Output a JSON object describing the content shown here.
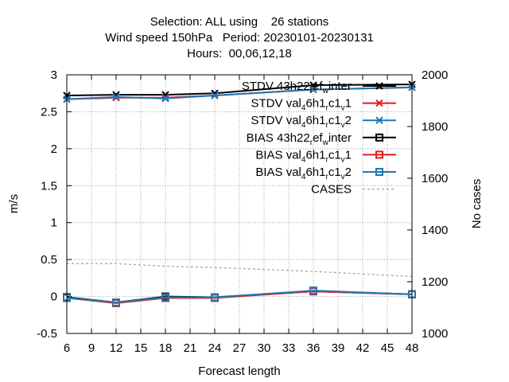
{
  "chart_data": {
    "type": "line",
    "title_lines": [
      "Selection: ALL using    26 stations",
      "Wind speed 150hPa   Period: 20230101-20230131",
      "Hours:  00,06,12,18"
    ],
    "xlabel": "Forecast length",
    "ylabel": "m/s",
    "y2label": "No cases",
    "x": [
      6,
      12,
      18,
      24,
      36,
      48
    ],
    "xlim": [
      6,
      48
    ],
    "xticks": [
      "6",
      "9",
      "12",
      "15",
      "18",
      "21",
      "24",
      "27",
      "30",
      "33",
      "36",
      "39",
      "42",
      "45",
      "48"
    ],
    "ylim": [
      -0.5,
      3
    ],
    "yticks": [
      "-0.5",
      "0",
      "0.5",
      "1",
      "1.5",
      "2",
      "2.5",
      "3"
    ],
    "y2lim": [
      1000,
      2000
    ],
    "y2ticks": [
      "1000",
      "1200",
      "1400",
      "1600",
      "1800",
      "2000"
    ],
    "grid": true,
    "legend_position": "top-right",
    "series": [
      {
        "name": "STDV 43h22_ref_winter",
        "label": {
          "main": "STDV 43h22",
          "subs": [
            [
              "r",
              "ef"
            ],
            [
              "w",
              "inter"
            ]
          ]
        },
        "color": "#000000",
        "marker": "x",
        "axis": "y1",
        "values": [
          2.72,
          2.73,
          2.73,
          2.75,
          2.86,
          2.87
        ]
      },
      {
        "name": "STDV val_46h1_rc1_v1",
        "label": {
          "main": "STDV val",
          "subs": [
            [
              "4",
              "6h1"
            ],
            [
              "r",
              "c1"
            ],
            [
              "v",
              "1"
            ]
          ]
        },
        "color": "#e41a1c",
        "marker": "x",
        "axis": "y1",
        "values": [
          2.67,
          2.69,
          2.69,
          2.72,
          2.8,
          2.83
        ]
      },
      {
        "name": "STDV val_46h1_rc1_v2",
        "label": {
          "main": "STDV val",
          "subs": [
            [
              "4",
              "6h1"
            ],
            [
              "r",
              "c1"
            ],
            [
              "v",
              "2"
            ]
          ]
        },
        "color": "#1f77b4",
        "marker": "x",
        "axis": "y1",
        "values": [
          2.67,
          2.7,
          2.68,
          2.72,
          2.8,
          2.83
        ]
      },
      {
        "name": "BIAS 43h22_ref_winter",
        "label": {
          "main": "BIAS 43h22",
          "subs": [
            [
              "r",
              "ef"
            ],
            [
              "w",
              "inter"
            ]
          ]
        },
        "color": "#000000",
        "marker": "square",
        "axis": "y1",
        "values": [
          -0.01,
          -0.08,
          0.0,
          -0.01,
          0.07,
          0.03
        ]
      },
      {
        "name": "BIAS val_46h1_rc1_v1",
        "label": {
          "main": "BIAS val",
          "subs": [
            [
              "4",
              "6h1"
            ],
            [
              "r",
              "c1"
            ],
            [
              "v",
              "1"
            ]
          ]
        },
        "color": "#e41a1c",
        "marker": "square",
        "axis": "y1",
        "values": [
          -0.02,
          -0.09,
          -0.02,
          -0.02,
          0.07,
          0.03
        ]
      },
      {
        "name": "BIAS val_46h1_rc1_v2",
        "label": {
          "main": "BIAS val",
          "subs": [
            [
              "4",
              "6h1"
            ],
            [
              "r",
              "c1"
            ],
            [
              "v",
              "2"
            ]
          ]
        },
        "color": "#1f77b4",
        "marker": "square",
        "axis": "y1",
        "values": [
          -0.02,
          -0.08,
          -0.01,
          -0.01,
          0.08,
          0.03
        ]
      },
      {
        "name": "CASES",
        "label": {
          "main": "CASES",
          "subs": []
        },
        "color": "#a0a0a0",
        "marker": "none",
        "dashed": true,
        "axis": "y2",
        "values": [
          1270,
          1270,
          1260,
          1255,
          1240,
          1220
        ]
      }
    ]
  }
}
